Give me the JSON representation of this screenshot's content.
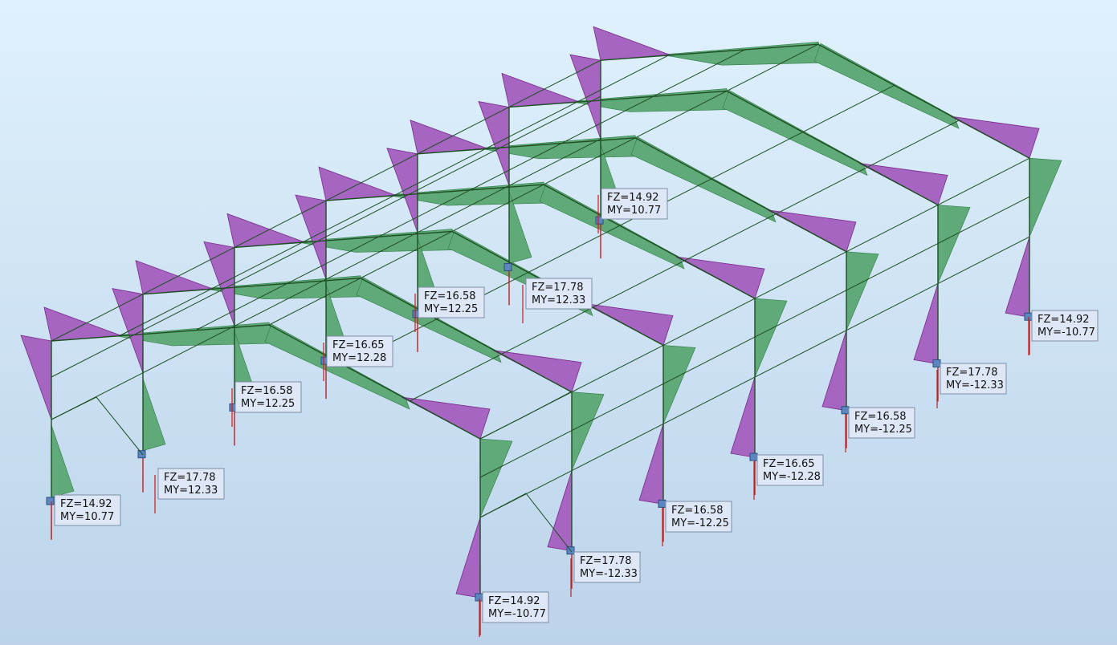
{
  "labels": [
    {
      "fz": "FZ=14.92",
      "my": "MY=10.77"
    },
    {
      "fz": "FZ=17.78",
      "my": "MY=12.33"
    },
    {
      "fz": "FZ=16.58",
      "my": "MY=12.25"
    },
    {
      "fz": "FZ=16.65",
      "my": "MY=12.28"
    },
    {
      "fz": "FZ=16.58",
      "my": "MY=12.25"
    },
    {
      "fz": "FZ=17.78",
      "my": "MY=12.33"
    },
    {
      "fz": "FZ=14.92",
      "my": "MY=10.77"
    },
    {
      "fz": "FZ=14.92",
      "my": "MY=-10.77"
    },
    {
      "fz": "FZ=17.78",
      "my": "MY=-12.33"
    },
    {
      "fz": "FZ=16.58",
      "my": "MY=-12.25"
    },
    {
      "fz": "FZ=16.65",
      "my": "MY=-12.28"
    },
    {
      "fz": "FZ=16.58",
      "my": "MY=-12.25"
    },
    {
      "fz": "FZ=17.78",
      "my": "MY=-12.33"
    },
    {
      "fz": "FZ=14.92",
      "my": "MY=-10.77"
    }
  ]
}
